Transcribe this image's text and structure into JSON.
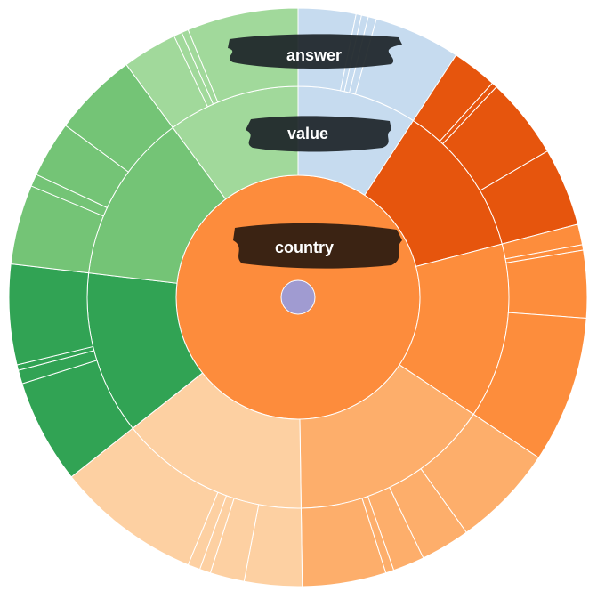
{
  "chart_data": {
    "type": "sunburst",
    "ring_labels": [
      "country",
      "value",
      "answer"
    ],
    "colors": {
      "center": "#a09bd1",
      "level0": "#fd8c3c",
      "dark_orange": "#e6550d",
      "orange": "#fd8d3c",
      "light_orange": "#fdae6b",
      "pale_orange": "#fdd0a2",
      "dark_green": "#31a354",
      "green": "#74c476",
      "light_green": "#a1d99b",
      "light_blue": "#c6dbef"
    },
    "level1": [
      {
        "value": 12.0,
        "color": "#c6dbef"
      },
      {
        "value": 15.3,
        "color": "#e6550d"
      },
      {
        "value": 17.5,
        "color": "#fd8d3c"
      },
      {
        "value": 20.1,
        "color": "#fdae6b"
      },
      {
        "value": 19.0,
        "color": "#fdd0a2"
      },
      {
        "value": 16.3,
        "color": "#31a354"
      },
      {
        "value": 17.0,
        "color": "#74c476"
      },
      {
        "value": 13.2,
        "color": "#a1d99b"
      }
    ],
    "level2": [
      [
        4.2,
        0.4,
        0.5,
        0.6,
        6.3
      ],
      [
        3.3,
        0.4,
        5.9,
        5.7
      ],
      [
        1.5,
        0.4,
        4.9,
        10.7
      ],
      [
        7.5,
        3.6,
        2.3,
        0.6,
        6.1
      ],
      [
        4.2,
        2.5,
        0.8,
        0.9,
        10.6
      ],
      [
        7.6,
        1.0,
        0.4,
        7.3
      ],
      [
        5.8,
        0.9,
        4.1,
        6.2
      ],
      [
        4.0,
        0.6,
        0.5,
        8.1
      ]
    ]
  }
}
